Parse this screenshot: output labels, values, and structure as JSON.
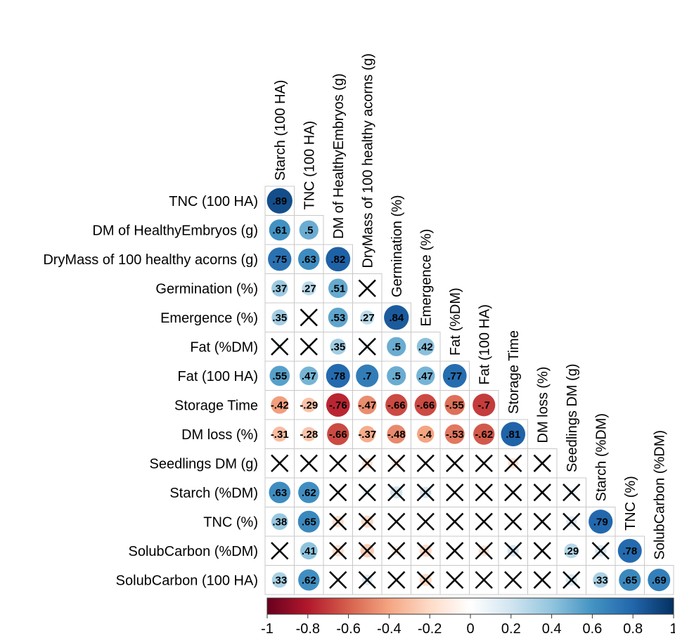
{
  "chart_data": {
    "type": "heatmap",
    "subtype": "correlogram-lower-triangle",
    "title": "",
    "row_labels": [
      "TNC (100 HA)",
      "DM of HealthyEmbryos (g)",
      "DryMass of 100 healthy acorns (g)",
      "Germination (%)",
      "Emergence (%)",
      "Fat (%DM)",
      "Fat (100 HA)",
      "Storage Time",
      "DM loss (%)",
      "Seedlings DM (g)",
      "Starch (%DM)",
      "TNC (%)",
      "SolubCarbon (%DM)",
      "SolubCarbon (100 HA)"
    ],
    "col_labels": [
      "Starch (100 HA)",
      "TNC (100 HA)",
      "DM of HealthyEmbryos (g)",
      "DryMass of 100 healthy acorns (g)",
      "Germination (%)",
      "Emergence (%)",
      "Fat (%DM)",
      "Fat (100 HA)",
      "Storage Time",
      "DM loss (%)",
      "Seedlings DM (g)",
      "Starch (%DM)",
      "TNC (%)",
      "SolubCarbon (%DM)"
    ],
    "values": [
      [
        0.89
      ],
      [
        0.61,
        0.5
      ],
      [
        0.75,
        0.63,
        0.82
      ],
      [
        0.37,
        0.27,
        0.51,
        0.05
      ],
      [
        0.35,
        0.02,
        0.53,
        0.27,
        0.84
      ],
      [
        0.08,
        0.05,
        0.35,
        0.1,
        0.5,
        0.42
      ],
      [
        0.55,
        0.47,
        0.78,
        0.7,
        0.5,
        0.47,
        0.77
      ],
      [
        -0.42,
        -0.29,
        -0.76,
        -0.47,
        -0.66,
        -0.66,
        -0.55,
        -0.7
      ],
      [
        -0.31,
        -0.28,
        -0.66,
        -0.37,
        -0.48,
        -0.4,
        -0.53,
        -0.62,
        0.81
      ],
      [
        0.02,
        -0.03,
        0.03,
        -0.15,
        -0.12,
        0.05,
        0.02,
        0.03,
        -0.15,
        0.02
      ],
      [
        0.63,
        0.62,
        0.05,
        0.1,
        0.2,
        0.18,
        0.03,
        0.02,
        0.05,
        0.03,
        0.1
      ],
      [
        0.38,
        0.65,
        -0.18,
        -0.2,
        0.03,
        0.02,
        0.05,
        0.03,
        0.02,
        0.05,
        0.15,
        0.79
      ],
      [
        0.05,
        0.41,
        -0.18,
        -0.25,
        -0.12,
        -0.2,
        0.05,
        -0.15,
        0.18,
        0.02,
        0.29,
        0.18,
        0.78
      ],
      [
        0.33,
        0.62,
        0.05,
        0.15,
        0.03,
        -0.2,
        0.02,
        0.05,
        0.05,
        0.02,
        0.18,
        0.33,
        0.65,
        0.69
      ]
    ],
    "insignificant": [
      [
        false
      ],
      [
        false,
        false
      ],
      [
        false,
        false,
        false
      ],
      [
        false,
        false,
        false,
        true
      ],
      [
        false,
        true,
        false,
        false,
        false
      ],
      [
        true,
        true,
        false,
        true,
        false,
        false
      ],
      [
        false,
        false,
        false,
        false,
        false,
        false,
        false
      ],
      [
        false,
        false,
        false,
        false,
        false,
        false,
        false,
        false
      ],
      [
        false,
        false,
        false,
        false,
        false,
        false,
        false,
        false,
        false
      ],
      [
        true,
        true,
        true,
        true,
        true,
        true,
        true,
        true,
        true,
        true
      ],
      [
        false,
        false,
        true,
        true,
        true,
        true,
        true,
        true,
        true,
        true,
        true
      ],
      [
        false,
        false,
        true,
        true,
        true,
        true,
        true,
        true,
        true,
        true,
        true,
        false
      ],
      [
        true,
        false,
        true,
        true,
        true,
        true,
        true,
        true,
        true,
        true,
        false,
        true,
        false
      ],
      [
        false,
        false,
        true,
        true,
        true,
        true,
        true,
        true,
        true,
        true,
        true,
        false,
        false,
        false
      ]
    ],
    "colorbar": {
      "ticks": [
        "-1",
        "-0.8",
        "-0.6",
        "-0.4",
        "-0.2",
        "0",
        "0.2",
        "0.4",
        "0.6",
        "0.8",
        "1"
      ],
      "range": [
        -1,
        1
      ],
      "colors": [
        "#67001f",
        "#b2182b",
        "#d6604d",
        "#f4a582",
        "#fddbc7",
        "#ffffff",
        "#d1e5f0",
        "#92c5de",
        "#4393c3",
        "#2166ac",
        "#053061"
      ]
    }
  }
}
